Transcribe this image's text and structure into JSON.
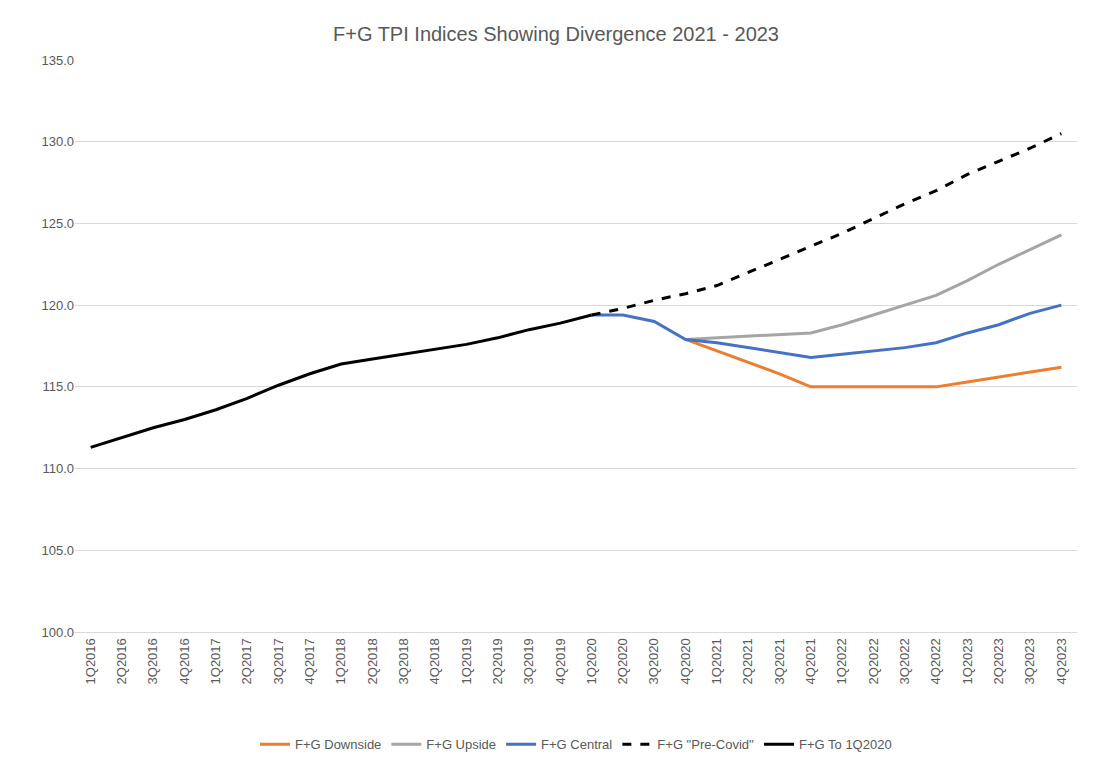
{
  "chart_data": {
    "type": "line",
    "title": "F+G TPI Indices Showing Divergence 2021 - 2023",
    "categories": [
      "1Q2016",
      "2Q2016",
      "3Q2016",
      "4Q2016",
      "1Q2017",
      "2Q2017",
      "3Q2017",
      "4Q2017",
      "1Q2018",
      "2Q2018",
      "3Q2018",
      "4Q2018",
      "1Q2019",
      "2Q2019",
      "3Q2019",
      "4Q2019",
      "1Q2020",
      "2Q2020",
      "3Q2020",
      "4Q2020",
      "1Q2021",
      "2Q2021",
      "3Q2021",
      "4Q2021",
      "1Q2022",
      "2Q2022",
      "3Q2022",
      "4Q2022",
      "1Q2023",
      "2Q2023",
      "3Q2023",
      "4Q2023"
    ],
    "series": [
      {
        "name": "F+G Downside",
        "color": "#ED7D31",
        "line_style": "solid",
        "values": [
          null,
          null,
          null,
          null,
          null,
          null,
          null,
          null,
          null,
          null,
          null,
          null,
          null,
          null,
          null,
          null,
          null,
          null,
          null,
          117.9,
          117.2,
          116.5,
          115.8,
          115.0,
          115.0,
          115.0,
          115.0,
          115.0,
          115.3,
          115.6,
          115.9,
          116.2
        ]
      },
      {
        "name": "F+G Upside",
        "color": "#A5A5A5",
        "line_style": "solid",
        "values": [
          null,
          null,
          null,
          null,
          null,
          null,
          null,
          null,
          null,
          null,
          null,
          null,
          null,
          null,
          null,
          null,
          null,
          null,
          null,
          117.9,
          118.0,
          118.1,
          118.2,
          118.3,
          118.8,
          119.4,
          120.0,
          120.6,
          121.5,
          122.5,
          123.4,
          124.3
        ]
      },
      {
        "name": "F+G Central",
        "color": "#4472C4",
        "line_style": "solid",
        "values": [
          null,
          null,
          null,
          null,
          null,
          null,
          null,
          null,
          null,
          null,
          null,
          null,
          null,
          null,
          null,
          null,
          119.4,
          119.4,
          119.0,
          117.9,
          117.7,
          117.4,
          117.1,
          116.8,
          117.0,
          117.2,
          117.4,
          117.7,
          118.3,
          118.8,
          119.5,
          120.0
        ]
      },
      {
        "name": "F+G \"Pre-Covid\"",
        "color": "#000000",
        "line_style": "dashed",
        "values": [
          null,
          null,
          null,
          null,
          null,
          null,
          null,
          null,
          null,
          null,
          null,
          null,
          null,
          null,
          null,
          null,
          119.4,
          119.8,
          120.3,
          120.7,
          121.2,
          122.0,
          122.8,
          123.6,
          124.4,
          125.3,
          126.2,
          127.0,
          128.0,
          128.8,
          129.6,
          130.5
        ]
      },
      {
        "name": "F+G To 1Q2020",
        "color": "#000000",
        "line_style": "solid",
        "values": [
          111.3,
          111.9,
          112.5,
          113.0,
          113.6,
          114.3,
          115.1,
          115.8,
          116.4,
          116.7,
          117.0,
          117.3,
          117.6,
          118.0,
          118.5,
          118.9,
          119.4,
          null,
          null,
          null,
          null,
          null,
          null,
          null,
          null,
          null,
          null,
          null,
          null,
          null,
          null,
          null
        ]
      }
    ],
    "ylim": [
      100,
      135
    ],
    "yticks": [
      {
        "value": 100,
        "label": "100.0"
      },
      {
        "value": 105,
        "label": "105.0"
      },
      {
        "value": 110,
        "label": "110.0"
      },
      {
        "value": 115,
        "label": "115.0"
      },
      {
        "value": 120,
        "label": "120.0"
      },
      {
        "value": 125,
        "label": "125.0"
      },
      {
        "value": 130,
        "label": "130.0"
      },
      {
        "value": 135,
        "label": "135.0"
      }
    ],
    "grid": true,
    "legend": "bottom"
  }
}
